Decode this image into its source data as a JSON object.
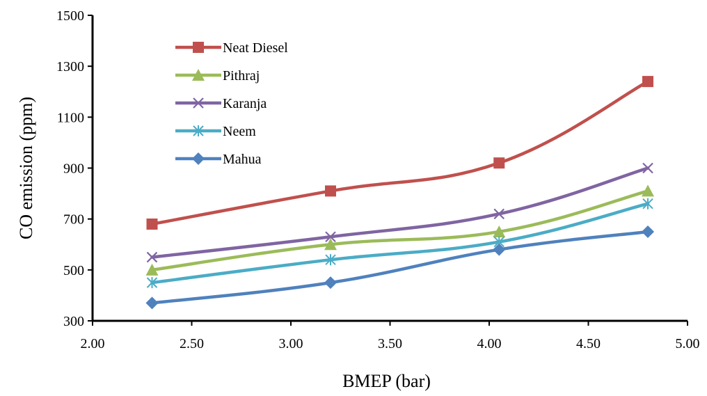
{
  "chart_data": {
    "type": "line",
    "title": "",
    "xlabel": "BMEP (bar)",
    "ylabel": "CO emission (ppm)",
    "xlim": [
      2.0,
      5.0
    ],
    "ylim": [
      300,
      1500
    ],
    "xticks": [
      "2.00",
      "2.50",
      "3.00",
      "3.50",
      "4.00",
      "4.50",
      "5.00"
    ],
    "yticks": [
      "300",
      "500",
      "700",
      "900",
      "1100",
      "1300",
      "1500"
    ],
    "grid": false,
    "legend_position": "top-left",
    "x": [
      2.3,
      3.2,
      4.05,
      4.8
    ],
    "series": [
      {
        "name": "Neat Diesel",
        "values": [
          680,
          810,
          920,
          1240
        ],
        "color": "#C0504D",
        "marker": "square"
      },
      {
        "name": "Pithraj",
        "values": [
          500,
          600,
          650,
          810
        ],
        "color": "#9BBB59",
        "marker": "triangle"
      },
      {
        "name": "Karanja",
        "values": [
          550,
          630,
          720,
          900
        ],
        "color": "#8064A2",
        "marker": "x"
      },
      {
        "name": "Neem",
        "values": [
          450,
          540,
          610,
          760
        ],
        "color": "#4BACC6",
        "marker": "star"
      },
      {
        "name": "Mahua",
        "values": [
          370,
          450,
          580,
          650
        ],
        "color": "#4F81BD",
        "marker": "diamond"
      }
    ]
  }
}
